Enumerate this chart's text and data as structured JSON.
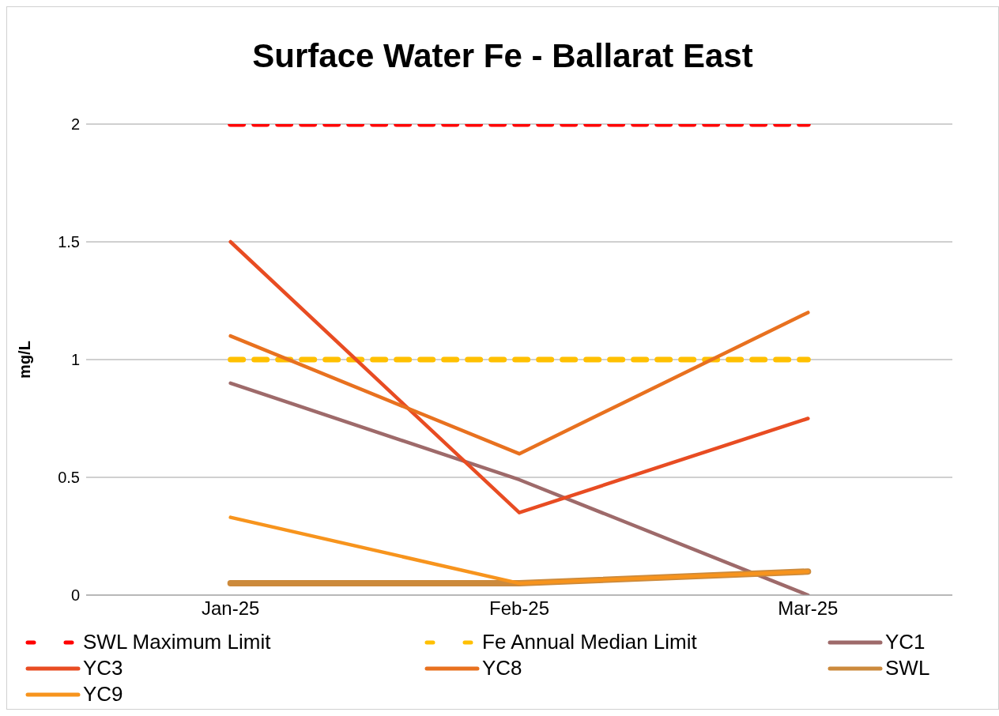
{
  "chart_data": {
    "type": "line",
    "title": "Surface Water Fe - Ballarat East",
    "ylabel": "mg/L",
    "categories": [
      "Jan-25",
      "Feb-25",
      "Mar-25"
    ],
    "series": [
      {
        "name": "SWL Maximum Limit",
        "color": "#ff0000",
        "values": [
          2,
          2,
          2
        ],
        "line_style": "dashed"
      },
      {
        "name": "Fe Annual Median Limit",
        "color": "#ffc000",
        "values": [
          1,
          1,
          1
        ],
        "line_style": "dashed"
      },
      {
        "name": "YC1",
        "color": "#9e6a6a",
        "values": [
          0.9,
          0.49,
          0
        ]
      },
      {
        "name": "YC3",
        "color": "#e84c22",
        "values": [
          1.5,
          0.35,
          0.75
        ]
      },
      {
        "name": "YC8",
        "color": "#e8711f",
        "values": [
          1.1,
          0.6,
          1.2
        ]
      },
      {
        "name": "SWL",
        "color": "#cc8a3c",
        "values": [
          0.05,
          0.05,
          0.1
        ]
      },
      {
        "name": "YC9",
        "color": "#f7941d",
        "values": [
          0.33,
          0.05,
          0.1
        ]
      }
    ],
    "ylim": [
      0,
      2
    ],
    "yticks": [
      0,
      0.5,
      1,
      1.5,
      2
    ],
    "grid": "y",
    "legend": "bottom",
    "marker": "none",
    "line_style": "solid"
  }
}
